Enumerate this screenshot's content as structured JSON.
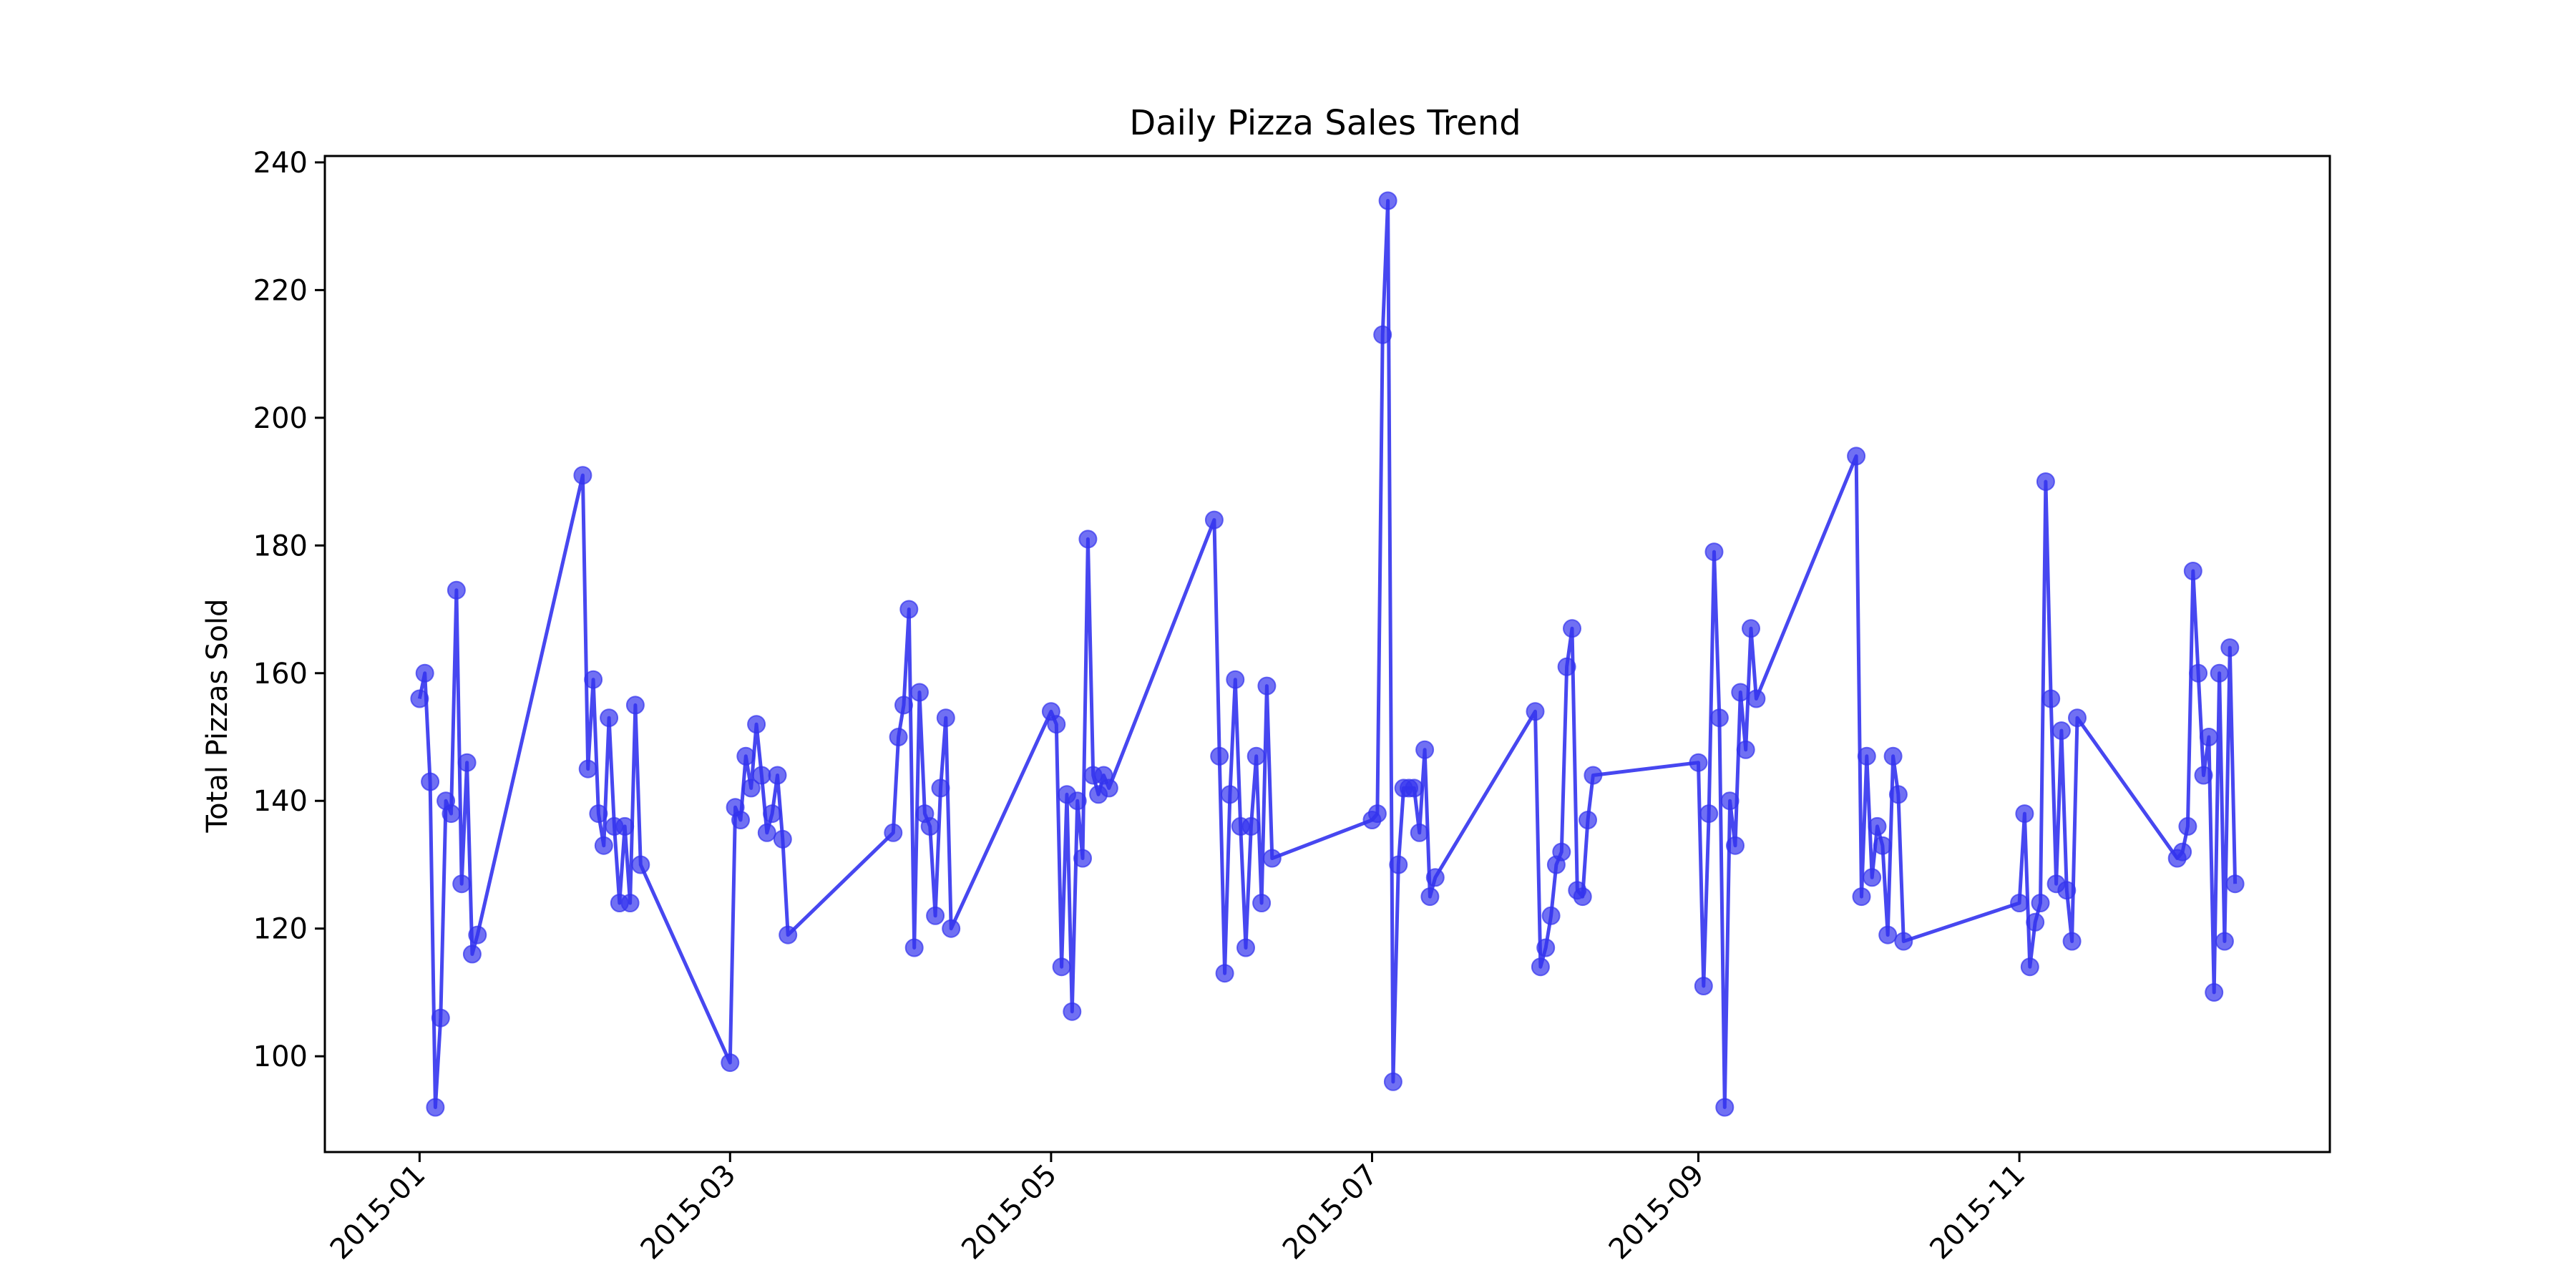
{
  "chart_data": {
    "type": "line",
    "title": "Daily Pizza Sales Trend",
    "xlabel": "",
    "ylabel": "Total Pizzas Sold",
    "x_tick_labels": [
      "2015-01",
      "2015-03",
      "2015-05",
      "2015-07",
      "2015-09",
      "2015-11"
    ],
    "y_tick_labels": [
      "100",
      "120",
      "140",
      "160",
      "180",
      "200",
      "220",
      "240"
    ],
    "x_tick_values": [
      "2015-01-01",
      "2015-03-01",
      "2015-05-01",
      "2015-07-01",
      "2015-09-01",
      "2015-11-01"
    ],
    "y_tick_values": [
      100,
      120,
      140,
      160,
      180,
      200,
      220,
      240
    ],
    "xlim": [
      "2014-12-14",
      "2015-12-30"
    ],
    "ylim": [
      85,
      241
    ],
    "grid": false,
    "legend": "none",
    "marker": "circle",
    "colors": {
      "series": "#3333ee",
      "marker_alpha": 0.7
    },
    "series": [
      {
        "points": [
          {
            "x": "2015-01-01",
            "y": 156
          },
          {
            "x": "2015-01-02",
            "y": 160
          },
          {
            "x": "2015-01-03",
            "y": 143
          },
          {
            "x": "2015-01-04",
            "y": 92
          },
          {
            "x": "2015-01-05",
            "y": 106
          },
          {
            "x": "2015-01-06",
            "y": 140
          },
          {
            "x": "2015-01-07",
            "y": 138
          },
          {
            "x": "2015-01-08",
            "y": 173
          },
          {
            "x": "2015-01-09",
            "y": 127
          },
          {
            "x": "2015-01-10",
            "y": 146
          },
          {
            "x": "2015-01-11",
            "y": 116
          },
          {
            "x": "2015-01-12",
            "y": 119
          },
          {
            "x": "2015-02-01",
            "y": 191
          },
          {
            "x": "2015-02-02",
            "y": 145
          },
          {
            "x": "2015-02-03",
            "y": 159
          },
          {
            "x": "2015-02-04",
            "y": 138
          },
          {
            "x": "2015-02-05",
            "y": 133
          },
          {
            "x": "2015-02-06",
            "y": 153
          },
          {
            "x": "2015-02-07",
            "y": 136
          },
          {
            "x": "2015-02-08",
            "y": 124
          },
          {
            "x": "2015-02-09",
            "y": 136
          },
          {
            "x": "2015-02-10",
            "y": 124
          },
          {
            "x": "2015-02-11",
            "y": 155
          },
          {
            "x": "2015-02-12",
            "y": 130
          },
          {
            "x": "2015-03-01",
            "y": 99
          },
          {
            "x": "2015-03-02",
            "y": 139
          },
          {
            "x": "2015-03-03",
            "y": 137
          },
          {
            "x": "2015-03-04",
            "y": 147
          },
          {
            "x": "2015-03-05",
            "y": 142
          },
          {
            "x": "2015-03-06",
            "y": 152
          },
          {
            "x": "2015-03-07",
            "y": 144
          },
          {
            "x": "2015-03-08",
            "y": 135
          },
          {
            "x": "2015-03-09",
            "y": 138
          },
          {
            "x": "2015-03-10",
            "y": 144
          },
          {
            "x": "2015-03-11",
            "y": 134
          },
          {
            "x": "2015-03-12",
            "y": 119
          },
          {
            "x": "2015-04-01",
            "y": 135
          },
          {
            "x": "2015-04-02",
            "y": 150
          },
          {
            "x": "2015-04-03",
            "y": 155
          },
          {
            "x": "2015-04-04",
            "y": 170
          },
          {
            "x": "2015-04-05",
            "y": 117
          },
          {
            "x": "2015-04-06",
            "y": 157
          },
          {
            "x": "2015-04-07",
            "y": 138
          },
          {
            "x": "2015-04-08",
            "y": 136
          },
          {
            "x": "2015-04-09",
            "y": 122
          },
          {
            "x": "2015-04-10",
            "y": 142
          },
          {
            "x": "2015-04-11",
            "y": 153
          },
          {
            "x": "2015-04-12",
            "y": 120
          },
          {
            "x": "2015-05-01",
            "y": 154
          },
          {
            "x": "2015-05-02",
            "y": 152
          },
          {
            "x": "2015-05-03",
            "y": 114
          },
          {
            "x": "2015-05-04",
            "y": 141
          },
          {
            "x": "2015-05-05",
            "y": 107
          },
          {
            "x": "2015-05-06",
            "y": 140
          },
          {
            "x": "2015-05-07",
            "y": 131
          },
          {
            "x": "2015-05-08",
            "y": 181
          },
          {
            "x": "2015-05-09",
            "y": 144
          },
          {
            "x": "2015-05-10",
            "y": 141
          },
          {
            "x": "2015-05-11",
            "y": 144
          },
          {
            "x": "2015-05-12",
            "y": 142
          },
          {
            "x": "2015-06-01",
            "y": 184
          },
          {
            "x": "2015-06-02",
            "y": 147
          },
          {
            "x": "2015-06-03",
            "y": 113
          },
          {
            "x": "2015-06-04",
            "y": 141
          },
          {
            "x": "2015-06-05",
            "y": 159
          },
          {
            "x": "2015-06-06",
            "y": 136
          },
          {
            "x": "2015-06-07",
            "y": 117
          },
          {
            "x": "2015-06-08",
            "y": 136
          },
          {
            "x": "2015-06-09",
            "y": 147
          },
          {
            "x": "2015-06-10",
            "y": 124
          },
          {
            "x": "2015-06-11",
            "y": 158
          },
          {
            "x": "2015-06-12",
            "y": 131
          },
          {
            "x": "2015-07-01",
            "y": 137
          },
          {
            "x": "2015-07-02",
            "y": 138
          },
          {
            "x": "2015-07-03",
            "y": 213
          },
          {
            "x": "2015-07-04",
            "y": 234
          },
          {
            "x": "2015-07-05",
            "y": 96
          },
          {
            "x": "2015-07-06",
            "y": 130
          },
          {
            "x": "2015-07-07",
            "y": 142
          },
          {
            "x": "2015-07-08",
            "y": 142
          },
          {
            "x": "2015-07-09",
            "y": 142
          },
          {
            "x": "2015-07-10",
            "y": 135
          },
          {
            "x": "2015-07-11",
            "y": 148
          },
          {
            "x": "2015-07-12",
            "y": 125
          },
          {
            "x": "2015-07-13",
            "y": 128
          },
          {
            "x": "2015-08-01",
            "y": 154
          },
          {
            "x": "2015-08-02",
            "y": 114
          },
          {
            "x": "2015-08-03",
            "y": 117
          },
          {
            "x": "2015-08-04",
            "y": 122
          },
          {
            "x": "2015-08-05",
            "y": 130
          },
          {
            "x": "2015-08-06",
            "y": 132
          },
          {
            "x": "2015-08-07",
            "y": 161
          },
          {
            "x": "2015-08-08",
            "y": 167
          },
          {
            "x": "2015-08-09",
            "y": 126
          },
          {
            "x": "2015-08-10",
            "y": 125
          },
          {
            "x": "2015-08-11",
            "y": 137
          },
          {
            "x": "2015-08-12",
            "y": 144
          },
          {
            "x": "2015-09-01",
            "y": 146
          },
          {
            "x": "2015-09-02",
            "y": 111
          },
          {
            "x": "2015-09-03",
            "y": 138
          },
          {
            "x": "2015-09-04",
            "y": 179
          },
          {
            "x": "2015-09-05",
            "y": 153
          },
          {
            "x": "2015-09-06",
            "y": 92
          },
          {
            "x": "2015-09-07",
            "y": 140
          },
          {
            "x": "2015-09-08",
            "y": 133
          },
          {
            "x": "2015-09-09",
            "y": 157
          },
          {
            "x": "2015-09-10",
            "y": 148
          },
          {
            "x": "2015-09-11",
            "y": 167
          },
          {
            "x": "2015-09-12",
            "y": 156
          },
          {
            "x": "2015-10-01",
            "y": 194
          },
          {
            "x": "2015-10-02",
            "y": 125
          },
          {
            "x": "2015-10-03",
            "y": 147
          },
          {
            "x": "2015-10-04",
            "y": 128
          },
          {
            "x": "2015-10-05",
            "y": 136
          },
          {
            "x": "2015-10-06",
            "y": 133
          },
          {
            "x": "2015-10-07",
            "y": 119
          },
          {
            "x": "2015-10-08",
            "y": 147
          },
          {
            "x": "2015-10-09",
            "y": 141
          },
          {
            "x": "2015-10-10",
            "y": 118
          },
          {
            "x": "2015-11-01",
            "y": 124
          },
          {
            "x": "2015-11-02",
            "y": 138
          },
          {
            "x": "2015-11-03",
            "y": 114
          },
          {
            "x": "2015-11-04",
            "y": 121
          },
          {
            "x": "2015-11-05",
            "y": 124
          },
          {
            "x": "2015-11-06",
            "y": 190
          },
          {
            "x": "2015-11-07",
            "y": 156
          },
          {
            "x": "2015-11-08",
            "y": 127
          },
          {
            "x": "2015-11-09",
            "y": 151
          },
          {
            "x": "2015-11-10",
            "y": 126
          },
          {
            "x": "2015-11-11",
            "y": 118
          },
          {
            "x": "2015-11-12",
            "y": 153
          },
          {
            "x": "2015-12-01",
            "y": 131
          },
          {
            "x": "2015-12-02",
            "y": 132
          },
          {
            "x": "2015-12-03",
            "y": 136
          },
          {
            "x": "2015-12-04",
            "y": 176
          },
          {
            "x": "2015-12-05",
            "y": 160
          },
          {
            "x": "2015-12-06",
            "y": 144
          },
          {
            "x": "2015-12-07",
            "y": 150
          },
          {
            "x": "2015-12-08",
            "y": 110
          },
          {
            "x": "2015-12-09",
            "y": 160
          },
          {
            "x": "2015-12-10",
            "y": 118
          },
          {
            "x": "2015-12-11",
            "y": 164
          },
          {
            "x": "2015-12-12",
            "y": 127
          }
        ]
      }
    ]
  }
}
